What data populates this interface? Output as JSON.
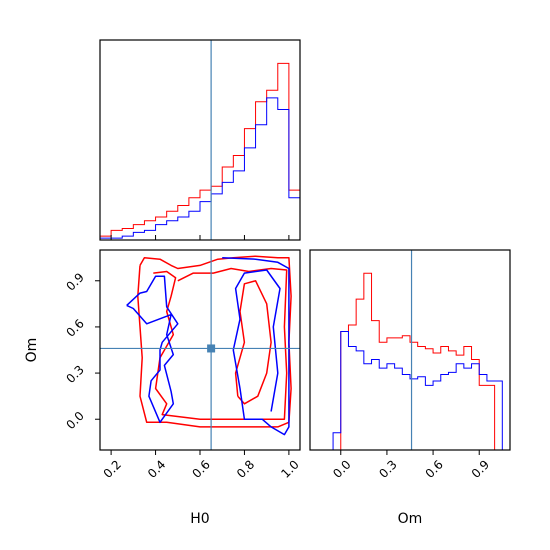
{
  "chart_data": [
    {
      "type": "histogram",
      "panel": "H0 marginal",
      "x_range": [
        0.15,
        1.05
      ],
      "truth": 0.65,
      "bins": [
        0.15,
        0.2,
        0.25,
        0.3,
        0.35,
        0.4,
        0.45,
        0.5,
        0.55,
        0.6,
        0.65,
        0.7,
        0.75,
        0.8,
        0.85,
        0.9,
        0.95,
        1.0,
        1.05
      ],
      "series": [
        {
          "color": "#ff0000",
          "values": [
            0.02,
            0.05,
            0.06,
            0.08,
            0.1,
            0.12,
            0.15,
            0.18,
            0.22,
            0.26,
            0.28,
            0.38,
            0.44,
            0.58,
            0.72,
            0.78,
            0.92,
            0.26
          ]
        },
        {
          "color": "#0000ff",
          "values": [
            0.01,
            0.01,
            0.02,
            0.04,
            0.05,
            0.08,
            0.1,
            0.12,
            0.15,
            0.2,
            0.24,
            0.3,
            0.36,
            0.48,
            0.6,
            0.74,
            0.68,
            0.22
          ]
        }
      ]
    },
    {
      "type": "histogram",
      "panel": "Om marginal",
      "x_range": [
        -0.2,
        1.1
      ],
      "truth": 0.46,
      "bins": [
        -0.05,
        0.0,
        0.05,
        0.1,
        0.15,
        0.2,
        0.25,
        0.3,
        0.35,
        0.4,
        0.45,
        0.5,
        0.55,
        0.6,
        0.65,
        0.7,
        0.75,
        0.8,
        0.85,
        0.9,
        0.95,
        1.0,
        1.05
      ],
      "series": [
        {
          "color": "#ff0000",
          "values": [
            0,
            0.55,
            0.58,
            0.7,
            0.82,
            0.6,
            0.5,
            0.52,
            0.52,
            0.53,
            0.5,
            0.48,
            0.47,
            0.45,
            0.48,
            0.46,
            0.44,
            0.48,
            0.42,
            0.3,
            0.3,
            0.0
          ]
        },
        {
          "color": "#0000ff",
          "values": [
            0.08,
            0.55,
            0.48,
            0.46,
            0.4,
            0.42,
            0.38,
            0.4,
            0.38,
            0.35,
            0.33,
            0.34,
            0.3,
            0.32,
            0.35,
            0.36,
            0.4,
            0.38,
            0.4,
            0.35,
            0.32,
            0.32
          ]
        }
      ]
    },
    {
      "type": "contour",
      "panel": "H0 vs Om",
      "x_range": [
        0.15,
        1.05
      ],
      "y_range": [
        -0.2,
        1.1
      ],
      "truth": [
        0.65,
        0.46
      ],
      "series": [
        {
          "color": "#ff0000",
          "paths": [
            [
              [
                0.33,
                1.0
              ],
              [
                0.35,
                1.05
              ],
              [
                0.42,
                1.04
              ],
              [
                0.47,
                1.0
              ],
              [
                0.5,
                0.98
              ],
              [
                0.6,
                1.0
              ],
              [
                0.68,
                1.04
              ],
              [
                0.75,
                1.05
              ],
              [
                0.85,
                1.06
              ],
              [
                0.95,
                1.05
              ],
              [
                1.0,
                1.05
              ],
              [
                1.01,
                0.8
              ],
              [
                1.0,
                0.5
              ],
              [
                1.01,
                0.2
              ],
              [
                1.0,
                -0.02
              ],
              [
                0.95,
                -0.05
              ],
              [
                0.8,
                -0.05
              ],
              [
                0.6,
                -0.05
              ],
              [
                0.45,
                -0.02
              ],
              [
                0.36,
                -0.02
              ],
              [
                0.33,
                0.15
              ],
              [
                0.34,
                0.4
              ],
              [
                0.33,
                0.6
              ],
              [
                0.32,
                0.8
              ],
              [
                0.33,
                1.0
              ]
            ],
            [
              [
                0.39,
                0.95
              ],
              [
                0.45,
                0.96
              ],
              [
                0.49,
                0.92
              ],
              [
                0.47,
                0.8
              ],
              [
                0.45,
                0.7
              ],
              [
                0.48,
                0.55
              ],
              [
                0.42,
                0.4
              ],
              [
                0.4,
                0.2
              ],
              [
                0.45,
                0.1
              ],
              [
                0.43,
                0.03
              ],
              [
                0.6,
                0.0
              ],
              [
                0.8,
                0.0
              ],
              [
                0.98,
                0.0
              ],
              [
                0.99,
                0.3
              ],
              [
                0.98,
                0.6
              ],
              [
                0.99,
                0.97
              ],
              [
                0.92,
                0.98
              ],
              [
                0.82,
                0.96
              ],
              [
                0.74,
                0.98
              ],
              [
                0.66,
                0.95
              ],
              [
                0.57,
                0.95
              ],
              [
                0.5,
                0.9
              ]
            ],
            [
              [
                0.77,
                0.15
              ],
              [
                0.76,
                0.3
              ],
              [
                0.8,
                0.5
              ],
              [
                0.78,
                0.7
              ],
              [
                0.8,
                0.88
              ],
              [
                0.85,
                0.9
              ],
              [
                0.9,
                0.75
              ],
              [
                0.92,
                0.5
              ],
              [
                0.9,
                0.3
              ],
              [
                0.86,
                0.15
              ],
              [
                0.8,
                0.1
              ],
              [
                0.77,
                0.15
              ]
            ]
          ]
        },
        {
          "color": "#0000ff",
          "paths": [
            [
              [
                0.27,
                0.74
              ],
              [
                0.33,
                0.82
              ],
              [
                0.36,
                0.83
              ],
              [
                0.4,
                0.93
              ],
              [
                0.44,
                0.93
              ],
              [
                0.45,
                0.73
              ],
              [
                0.5,
                0.62
              ],
              [
                0.43,
                0.5
              ],
              [
                0.42,
                0.45
              ],
              [
                0.42,
                0.32
              ],
              [
                0.38,
                0.25
              ],
              [
                0.37,
                0.15
              ],
              [
                0.42,
                -0.02
              ],
              [
                0.48,
                0.1
              ],
              [
                0.47,
                0.18
              ],
              [
                0.44,
                0.35
              ],
              [
                0.48,
                0.42
              ],
              [
                0.45,
                0.55
              ],
              [
                0.47,
                0.68
              ],
              [
                0.36,
                0.62
              ],
              [
                0.3,
                0.72
              ],
              [
                0.27,
                0.74
              ]
            ],
            [
              [
                0.7,
                1.05
              ],
              [
                0.85,
                1.04
              ],
              [
                0.95,
                1.02
              ],
              [
                1.0,
                0.98
              ],
              [
                1.0,
                0.4
              ],
              [
                1.0,
                -0.05
              ],
              [
                0.98,
                -0.1
              ],
              [
                0.92,
                -0.05
              ],
              [
                0.88,
                0.0
              ],
              [
                0.8,
                0.0
              ],
              [
                0.78,
                0.2
              ],
              [
                0.75,
                0.45
              ],
              [
                0.78,
                0.65
              ],
              [
                0.76,
                0.85
              ],
              [
                0.8,
                0.95
              ],
              [
                0.9,
                0.97
              ],
              [
                0.96,
                0.85
              ],
              [
                0.93,
                0.6
              ],
              [
                0.95,
                0.3
              ],
              [
                0.92,
                0.05
              ]
            ]
          ]
        }
      ]
    }
  ],
  "axis_labels": {
    "h0": "H0",
    "om": "Om"
  },
  "ticks": {
    "h0": [
      "0.2",
      "0.4",
      "0.6",
      "0.8",
      "1.0"
    ],
    "om_y": [
      "0.9",
      "0.6",
      "0.3",
      "0.0"
    ],
    "om_x": [
      "0.0",
      "0.3",
      "0.6",
      "0.9"
    ]
  }
}
